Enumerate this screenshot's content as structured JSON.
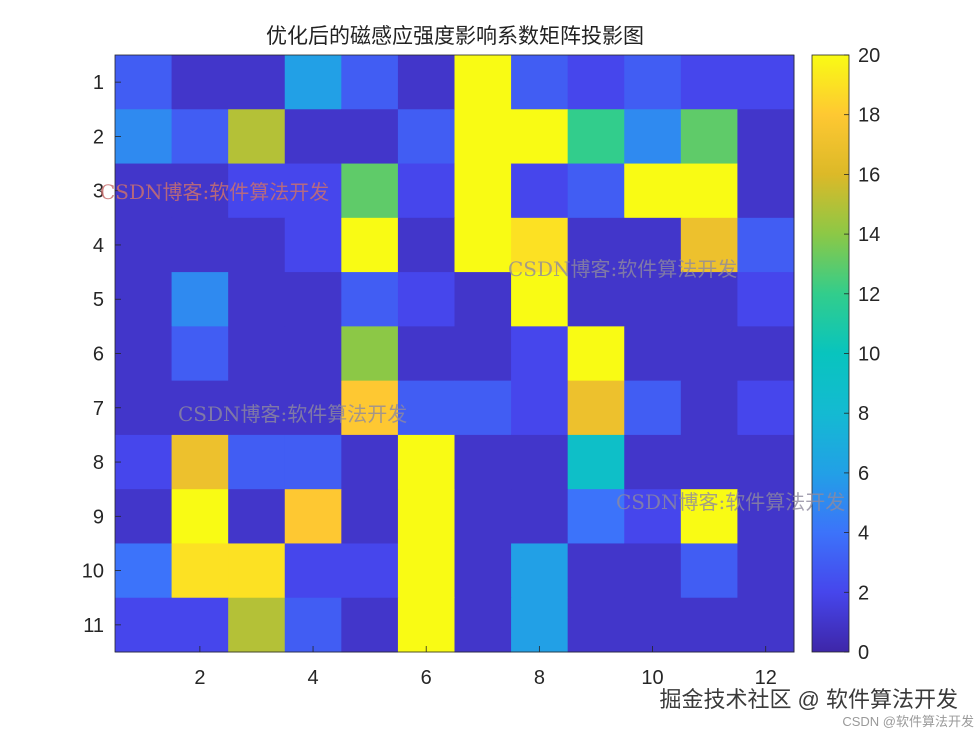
{
  "chart_data": {
    "type": "heatmap",
    "title": "优化后的磁感应强度影响系数矩阵投影图",
    "xlabel": "",
    "ylabel": "",
    "rows": [
      1,
      2,
      3,
      4,
      5,
      6,
      7,
      8,
      9,
      10,
      11
    ],
    "cols": [
      1,
      2,
      3,
      4,
      5,
      6,
      7,
      8,
      9,
      10,
      11,
      12
    ],
    "x_ticks": [
      2,
      4,
      6,
      8,
      10,
      12
    ],
    "y_ticks": [
      1,
      2,
      3,
      4,
      5,
      6,
      7,
      8,
      9,
      10,
      11
    ],
    "values": [
      [
        3,
        1,
        1,
        6,
        3,
        1,
        20,
        3,
        2,
        3,
        2,
        2
      ],
      [
        5,
        3,
        15,
        1,
        1,
        3,
        20,
        20,
        12,
        5,
        13,
        1
      ],
      [
        1,
        1,
        2,
        2,
        13,
        2,
        20,
        2,
        3,
        20,
        20,
        1
      ],
      [
        1,
        1,
        1,
        2,
        20,
        1,
        20,
        19,
        1,
        1,
        17,
        3
      ],
      [
        1,
        5,
        1,
        1,
        3,
        2,
        1,
        20,
        1,
        1,
        1,
        2
      ],
      [
        1,
        3,
        1,
        1,
        14,
        1,
        1,
        2,
        20,
        1,
        1,
        1
      ],
      [
        1,
        1,
        1,
        1,
        18,
        3,
        3,
        2,
        17,
        3,
        1,
        2
      ],
      [
        2,
        17,
        3,
        3,
        1,
        20,
        1,
        1,
        9,
        1,
        1,
        1
      ],
      [
        1,
        20,
        1,
        18,
        1,
        20,
        1,
        1,
        4,
        2,
        20,
        1
      ],
      [
        4,
        19,
        19,
        2,
        2,
        20,
        1,
        6,
        1,
        1,
        3,
        1
      ],
      [
        2,
        2,
        15,
        3,
        1,
        20,
        1,
        6,
        1,
        1,
        1,
        1
      ]
    ],
    "colorbar": {
      "min": 0,
      "max": 20,
      "ticks": [
        0,
        2,
        4,
        6,
        8,
        10,
        12,
        14,
        16,
        18,
        20
      ],
      "colormap": "parula"
    },
    "grid": false,
    "legend": "none"
  },
  "watermarks": [
    {
      "text": "CSDN博客:软件算法开发",
      "color": "#c9706e"
    },
    {
      "text": "CSDN博客:软件算法开发",
      "color": "#8f8a9e"
    },
    {
      "text": "CSDN博客:软件算法开发",
      "color": "#8f8a9e"
    },
    {
      "text": "CSDN博客:软件算法开发",
      "color": "#8f8a9e"
    }
  ],
  "footer": {
    "credit": "掘金技术社区 @ 软件算法开发",
    "credit_small": "CSDN @软件算法开发"
  }
}
